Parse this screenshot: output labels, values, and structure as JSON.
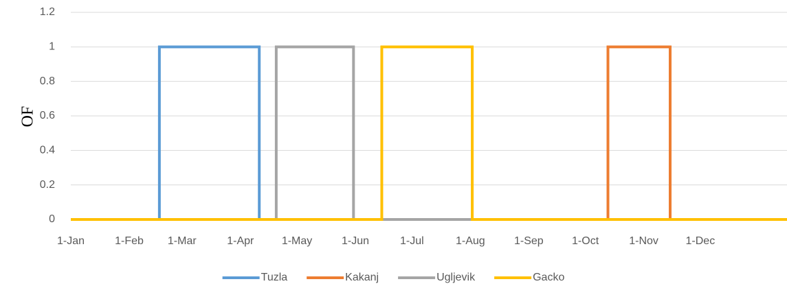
{
  "chart_data": {
    "type": "line",
    "y_label": "OF",
    "xlim": [
      1,
      381
    ],
    "xticks": [
      {
        "value": 1,
        "label": "1-Jan"
      },
      {
        "value": 32,
        "label": "1-Feb"
      },
      {
        "value": 60,
        "label": "1-Mar"
      },
      {
        "value": 91,
        "label": "1-Apr"
      },
      {
        "value": 121,
        "label": "1-May"
      },
      {
        "value": 152,
        "label": "1-Jun"
      },
      {
        "value": 182,
        "label": "1-Jul"
      },
      {
        "value": 213,
        "label": "1-Aug"
      },
      {
        "value": 244,
        "label": "1-Sep"
      },
      {
        "value": 274,
        "label": "1-Oct"
      },
      {
        "value": 305,
        "label": "1-Nov"
      },
      {
        "value": 335,
        "label": "1-Dec"
      }
    ],
    "ylim": [
      0,
      1.2
    ],
    "yticks": [
      0,
      0.2,
      0.4,
      0.6,
      0.8,
      1,
      1.2
    ],
    "grid": true,
    "legend": "bottom",
    "series": [
      {
        "name": "Tuzla",
        "color": "#5b9bd5",
        "x": [
          1,
          48,
          48,
          101,
          101,
          381
        ],
        "values": [
          0,
          0,
          1,
          1,
          0,
          0
        ]
      },
      {
        "name": "Kakanj",
        "color": "#ed7d31",
        "x": [
          1,
          286,
          286,
          319,
          319,
          381
        ],
        "values": [
          0,
          0,
          1,
          1,
          0,
          0
        ]
      },
      {
        "name": "Ugljevik",
        "color": "#a5a5a5",
        "x": [
          1,
          110,
          110,
          151,
          151,
          381
        ],
        "values": [
          0,
          0,
          1,
          1,
          0,
          0
        ]
      },
      {
        "name": "Gacko",
        "color": "#ffc000",
        "x": [
          1,
          166,
          166,
          214,
          214,
          381
        ],
        "values": [
          0,
          0,
          1,
          1,
          0,
          0
        ]
      }
    ]
  }
}
